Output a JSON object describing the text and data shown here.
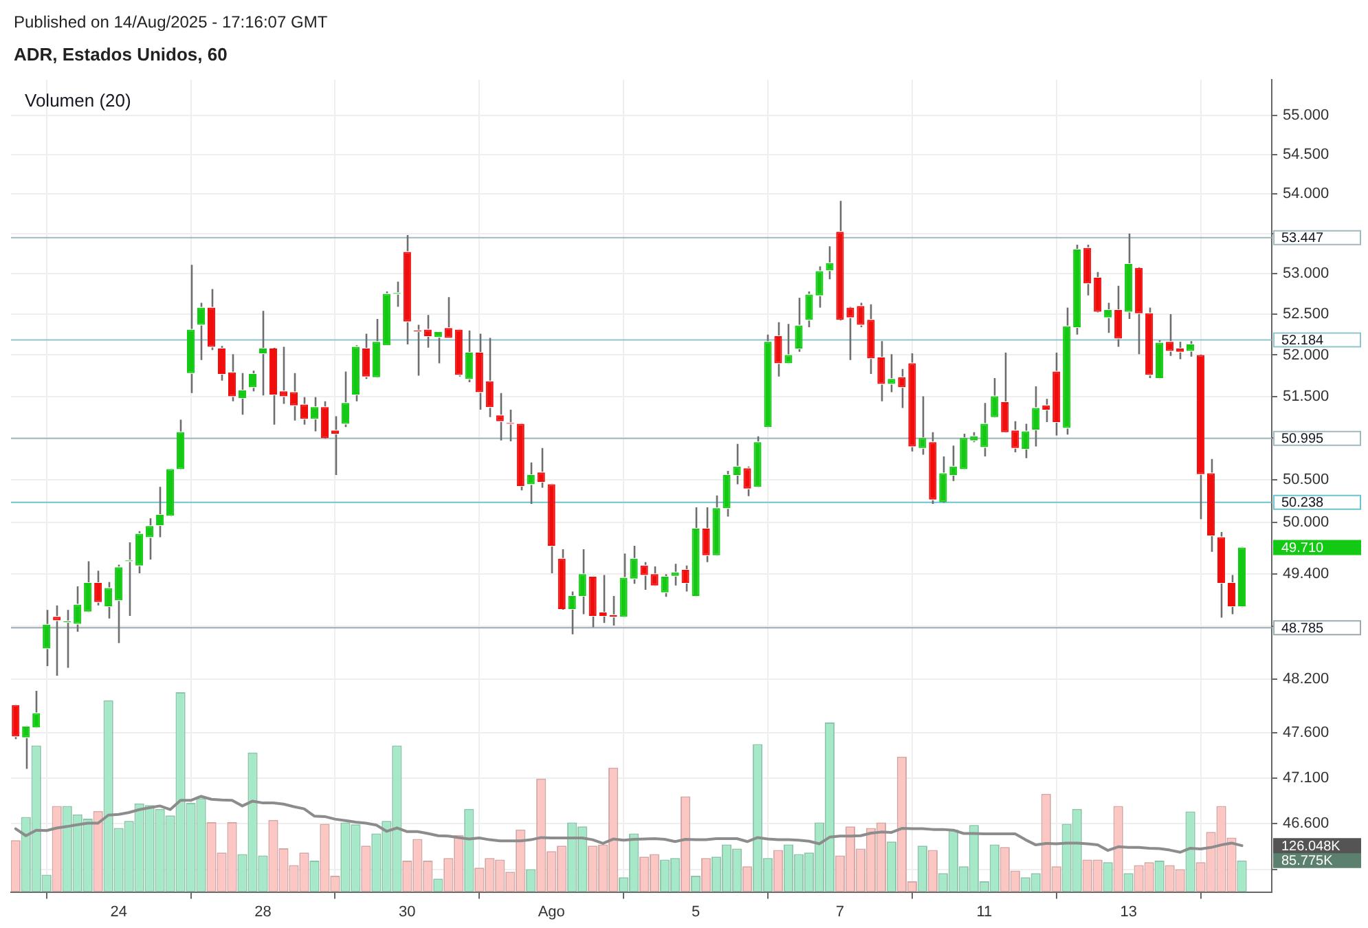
{
  "chart_data": {
    "type": "candlestick",
    "subtitle": "Published on 14/Aug/2025 - 17:16:07 GMT",
    "title": "ADR, Estados Unidos, 60",
    "annotations": [
      "Volumen (20)",
      "49.710"
    ],
    "categories": [
      null,
      null,
      null,
      null,
      null,
      null,
      null,
      null,
      null,
      null,
      "24",
      null,
      null,
      null,
      null,
      null,
      null,
      null,
      null,
      null,
      null,
      null,
      null,
      null,
      "28",
      null,
      null,
      null,
      null,
      null,
      null,
      null,
      null,
      null,
      null,
      null,
      null,
      null,
      "30",
      null,
      null,
      null,
      null,
      null,
      null,
      null,
      null,
      null,
      null,
      null,
      null,
      null,
      "Ago",
      null,
      null,
      null,
      null,
      null,
      null,
      null,
      null,
      null,
      null,
      null,
      null,
      null,
      "5",
      null,
      null,
      null,
      null,
      null,
      null,
      null,
      null,
      null,
      null,
      null,
      null,
      null,
      "7",
      null,
      null,
      null,
      null,
      null,
      null,
      null,
      null,
      null,
      null,
      null,
      null,
      null,
      "11",
      null,
      null,
      null,
      null,
      null,
      null,
      null,
      null,
      null,
      null,
      null,
      null,
      null,
      "13",
      null,
      null,
      null,
      null,
      null,
      null,
      null,
      null,
      null,
      null,
      null
    ],
    "ylim": [
      45.86,
      55.46
    ],
    "yticks": [
      {
        "value": 55,
        "label": "55.000"
      },
      {
        "value": 54.5,
        "label": "54.500"
      },
      {
        "value": 54,
        "label": "54.000"
      },
      {
        "value": 53.5,
        "label": null
      },
      {
        "value": 53,
        "label": "53.000"
      },
      {
        "value": 52.5,
        "label": "52.500"
      },
      {
        "value": 52,
        "label": "52.000"
      },
      {
        "value": 51.5,
        "label": "51.500"
      },
      {
        "value": 51,
        "label": null
      },
      {
        "value": 50.5,
        "label": "50.500"
      },
      {
        "value": 50,
        "label": "50.000"
      },
      {
        "value": 49.4,
        "label": "49.400"
      },
      {
        "value": 48.8,
        "label": null
      },
      {
        "value": 48.2,
        "label": "48.200"
      },
      {
        "value": 47.6,
        "label": "47.600"
      },
      {
        "value": 47.1,
        "label": "47.100"
      },
      {
        "value": 46.6,
        "label": "46.600"
      },
      {
        "value": 46.1,
        "label": null
      }
    ],
    "y2lim": [
      0,
      2208
    ],
    "y2ticks": [
      {
        "value": 85.775,
        "label": "85.775K"
      },
      {
        "value": 126.048,
        "label": "126.048K"
      }
    ],
    "log": "y",
    "grid": true,
    "ref_lines": [
      {
        "axis": "y",
        "value": 53.447,
        "label": "53.447",
        "color": "#9fb9be"
      },
      {
        "axis": "y",
        "value": 52.184,
        "label": "52.184",
        "color": "#8fc4cc"
      },
      {
        "axis": "y",
        "value": 50.995,
        "label": "50.995",
        "color": "#9fb9be"
      },
      {
        "axis": "y",
        "value": 50.238,
        "label": "50.238",
        "color": "#6cc3d1"
      },
      {
        "axis": "y",
        "value": 48.785,
        "label": "48.785",
        "color": "#9aacb0"
      }
    ],
    "series": [
      {
        "type": "bar",
        "axis": "y2",
        "values": [
          141,
          204,
          398,
          47,
          234,
          234,
          211,
          199,
          220,
          521,
          174,
          193,
          241,
          236,
          226,
          208,
          543,
          242,
          255,
          190,
          107,
          190,
          103,
          379,
          99,
          196,
          119,
          73,
          107,
          85,
          185,
          44,
          189,
          184,
          126,
          159,
          193,
          398,
          85,
          144,
          85,
          36,
          92,
          155,
          226,
          66,
          92,
          88,
          55,
          170,
          62,
          308,
          111,
          126,
          189,
          178,
          126,
          129,
          338,
          40,
          159,
          96,
          103,
          88,
          92,
          260,
          44,
          92,
          96,
          129,
          118,
          70,
          402,
          92,
          114,
          129,
          103,
          107,
          189,
          461,
          99,
          178,
          118,
          174,
          189,
          137,
          368,
          29,
          126,
          114,
          51,
          170,
          70,
          182,
          29,
          129,
          122,
          58,
          40,
          51,
          267,
          70,
          185,
          226,
          88,
          88,
          81,
          234,
          51,
          73,
          81,
          85,
          73,
          62,
          219,
          81,
          163,
          234,
          148,
          85.775
        ],
        "colors": [
          "#fcc6c3",
          "#a6e9c8",
          "#a6e9c8",
          "#a6e9c8",
          "#fcc6c3",
          "#a6e9c8",
          "#a6e9c8",
          "#a6e9c8",
          "#fcc6c3",
          "#a6e9c8",
          "#a6e9c8",
          "#a6e9c8",
          "#a6e9c8",
          "#a6e9c8",
          "#a6e9c8",
          "#a6e9c8",
          "#a6e9c8",
          "#a6e9c8",
          "#a6e9c8",
          "#fcc6c3",
          "#fcc6c3",
          "#fcc6c3",
          "#a6e9c8",
          "#a6e9c8",
          "#a6e9c8",
          "#fcc6c3",
          "#fcc6c3",
          "#fcc6c3",
          "#fcc6c3",
          "#a6e9c8",
          "#fcc6c3",
          "#fcc6c3",
          "#a6e9c8",
          "#a6e9c8",
          "#fcc6c3",
          "#a6e9c8",
          "#a6e9c8",
          "#a6e9c8",
          "#fcc6c3",
          "#fcc6c3",
          "#fcc6c3",
          "#a6e9c8",
          "#fcc6c3",
          "#fcc6c3",
          "#a6e9c8",
          "#fcc6c3",
          "#fcc6c3",
          "#fcc6c3",
          "#fcc6c3",
          "#fcc6c3",
          "#a6e9c8",
          "#fcc6c3",
          "#fcc6c3",
          "#fcc6c3",
          "#a6e9c8",
          "#a6e9c8",
          "#fcc6c3",
          "#fcc6c3",
          "#fcc6c3",
          "#a6e9c8",
          "#a6e9c8",
          "#fcc6c3",
          "#fcc6c3",
          "#a6e9c8",
          "#a6e9c8",
          "#fcc6c3",
          "#a6e9c8",
          "#fcc6c3",
          "#a6e9c8",
          "#a6e9c8",
          "#a6e9c8",
          "#fcc6c3",
          "#a6e9c8",
          "#a6e9c8",
          "#fcc6c3",
          "#a6e9c8",
          "#a6e9c8",
          "#a6e9c8",
          "#a6e9c8",
          "#a6e9c8",
          "#fcc6c3",
          "#fcc6c3",
          "#fcc6c3",
          "#fcc6c3",
          "#fcc6c3",
          "#a6e9c8",
          "#fcc6c3",
          "#fcc6c3",
          "#a6e9c8",
          "#fcc6c3",
          "#a6e9c8",
          "#a6e9c8",
          "#a6e9c8",
          "#a6e9c8",
          "#a6e9c8",
          "#a6e9c8",
          "#fcc6c3",
          "#fcc6c3",
          "#a6e9c8",
          "#a6e9c8",
          "#fcc6c3",
          "#fcc6c3",
          "#a6e9c8",
          "#a6e9c8",
          "#fcc6c3",
          "#fcc6c3",
          "#a6e9c8",
          "#fcc6c3",
          "#a6e9c8",
          "#fcc6c3",
          "#fcc6c3",
          "#a6e9c8",
          "#fcc6c3",
          "#fcc6c3",
          "#a6e9c8",
          "#fcc6c3",
          "#fcc6c3",
          "#fcc6c3",
          "#fcc6c3",
          "#a6e9c8"
        ]
      },
      {
        "type": "line",
        "axis": "y2",
        "color": "#8c8c8c",
        "values": [
          172,
          153,
          168,
          167,
          174,
          178,
          183,
          187,
          187,
          209,
          211,
          216,
          224,
          229,
          234,
          224,
          249,
          249,
          260,
          252,
          250,
          249,
          234,
          247,
          242,
          242,
          239,
          232,
          226,
          206,
          205,
          198,
          194,
          190,
          187,
          182,
          165,
          174,
          164,
          164,
          159,
          153,
          152,
          148,
          144,
          147,
          142,
          139,
          139,
          139,
          142,
          148,
          147,
          147,
          147,
          147,
          142,
          132,
          144,
          141,
          143,
          144,
          145,
          143,
          137,
          143,
          142,
          142,
          145,
          145,
          145,
          137,
          148,
          144,
          142,
          142,
          141,
          138,
          131,
          149,
          152,
          152,
          153,
          160,
          163,
          162,
          173,
          172,
          172,
          170,
          170,
          168,
          159,
          159,
          158,
          158,
          158,
          158,
          142,
          128,
          132,
          131,
          133,
          133,
          131,
          128,
          113,
          123,
          121,
          121,
          119,
          118,
          114,
          108,
          119,
          117,
          121,
          128,
          133,
          126.048
        ]
      },
      {
        "ohlc": [
          [
            47.91,
            47.92,
            47.53,
            47.56
          ],
          [
            47.55,
            47.68,
            47.2,
            47.67
          ],
          [
            47.66,
            48.07,
            47.65,
            47.82
          ],
          [
            48.55,
            48.99,
            48.35,
            48.82
          ],
          [
            48.91,
            49.04,
            48.24,
            48.87
          ],
          [
            48.85,
            48.99,
            48.33,
            48.86
          ],
          [
            48.83,
            49.26,
            48.74,
            49.05
          ],
          [
            48.97,
            49.55,
            48.96,
            49.3
          ],
          [
            49.3,
            49.44,
            49.04,
            49.08
          ],
          [
            49.03,
            49.31,
            48.89,
            49.24
          ],
          [
            49.1,
            49.51,
            48.61,
            49.48
          ],
          [
            49.55,
            49.77,
            48.92,
            49.56
          ],
          [
            49.5,
            49.9,
            49.41,
            49.87
          ],
          [
            49.83,
            50.05,
            49.57,
            49.96
          ],
          [
            49.97,
            50.42,
            49.83,
            50.09
          ],
          [
            50.08,
            50.64,
            50.07,
            50.63
          ],
          [
            50.63,
            51.22,
            50.62,
            51.07
          ],
          [
            51.78,
            53.11,
            51.54,
            52.31
          ],
          [
            52.37,
            52.64,
            51.94,
            52.58
          ],
          [
            52.58,
            52.81,
            52.06,
            52.1
          ],
          [
            52.08,
            52.11,
            51.69,
            51.77
          ],
          [
            51.79,
            52.01,
            51.44,
            51.5
          ],
          [
            51.48,
            51.78,
            51.28,
            51.57
          ],
          [
            51.61,
            51.81,
            51.56,
            51.77
          ],
          [
            52.02,
            52.54,
            51.51,
            52.08
          ],
          [
            52.08,
            52.08,
            51.16,
            51.52
          ],
          [
            51.56,
            52.1,
            51.41,
            51.5
          ],
          [
            51.55,
            51.78,
            51.21,
            51.39
          ],
          [
            51.4,
            51.49,
            51.16,
            51.23
          ],
          [
            51.23,
            51.49,
            51.08,
            51.37
          ],
          [
            51.37,
            51.44,
            51.0,
            51.0
          ],
          [
            51.09,
            51.26,
            50.56,
            51.05
          ],
          [
            51.17,
            51.8,
            51.13,
            51.42
          ],
          [
            51.52,
            52.12,
            51.44,
            52.1
          ],
          [
            52.08,
            52.26,
            51.71,
            51.74
          ],
          [
            51.73,
            52.44,
            51.72,
            52.16
          ],
          [
            52.12,
            52.78,
            52.11,
            52.75
          ],
          [
            52.75,
            52.9,
            52.59,
            52.76
          ],
          [
            53.27,
            53.48,
            52.13,
            52.41
          ],
          [
            52.3,
            52.37,
            51.75,
            52.29
          ],
          [
            52.31,
            52.49,
            52.09,
            52.23
          ],
          [
            52.22,
            52.29,
            51.9,
            52.28
          ],
          [
            52.33,
            52.71,
            52.2,
            52.21
          ],
          [
            52.31,
            52.32,
            51.74,
            51.76
          ],
          [
            51.71,
            52.3,
            51.67,
            52.03
          ],
          [
            52.03,
            52.26,
            51.34,
            51.55
          ],
          [
            51.68,
            52.21,
            51.25,
            51.37
          ],
          [
            51.27,
            51.54,
            50.97,
            51.2
          ],
          [
            51.18,
            51.34,
            50.96,
            51.17
          ],
          [
            51.17,
            51.18,
            50.38,
            50.43
          ],
          [
            50.45,
            50.71,
            50.22,
            50.56
          ],
          [
            50.59,
            50.88,
            50.41,
            50.48
          ],
          [
            50.45,
            50.46,
            49.41,
            49.73
          ],
          [
            49.58,
            49.69,
            49.0,
            49.0
          ],
          [
            49.0,
            49.2,
            48.71,
            49.15
          ],
          [
            49.15,
            49.69,
            48.94,
            49.4
          ],
          [
            49.37,
            49.38,
            48.79,
            48.92
          ],
          [
            48.96,
            49.39,
            48.84,
            48.92
          ],
          [
            48.93,
            49.15,
            48.81,
            48.91
          ],
          [
            48.91,
            49.64,
            48.9,
            49.36
          ],
          [
            49.35,
            49.73,
            49.29,
            49.58
          ],
          [
            49.5,
            49.54,
            49.22,
            49.39
          ],
          [
            49.4,
            49.49,
            49.26,
            49.27
          ],
          [
            49.19,
            49.4,
            49.14,
            49.37
          ],
          [
            49.38,
            49.52,
            49.27,
            49.42
          ],
          [
            49.45,
            49.5,
            49.2,
            49.3
          ],
          [
            49.15,
            50.18,
            49.14,
            49.93
          ],
          [
            49.93,
            50.18,
            49.54,
            49.62
          ],
          [
            49.62,
            50.32,
            49.61,
            50.17
          ],
          [
            50.17,
            50.61,
            50.07,
            50.56
          ],
          [
            50.56,
            50.93,
            50.45,
            50.66
          ],
          [
            50.64,
            50.66,
            50.31,
            50.4
          ],
          [
            50.42,
            51.02,
            50.41,
            50.95
          ],
          [
            51.13,
            52.25,
            51.12,
            52.16
          ],
          [
            52.23,
            52.4,
            51.74,
            51.9
          ],
          [
            51.9,
            52.38,
            51.89,
            52.0
          ],
          [
            52.08,
            52.7,
            52.04,
            52.36
          ],
          [
            52.43,
            52.78,
            52.34,
            52.74
          ],
          [
            52.73,
            53.09,
            52.58,
            53.03
          ],
          [
            53.04,
            53.34,
            52.93,
            53.13
          ],
          [
            53.52,
            53.91,
            52.43,
            52.43
          ],
          [
            52.58,
            52.58,
            51.94,
            52.46
          ],
          [
            52.6,
            52.64,
            52.34,
            52.37
          ],
          [
            52.43,
            52.62,
            51.77,
            51.96
          ],
          [
            51.97,
            52.17,
            51.44,
            51.65
          ],
          [
            51.65,
            52.01,
            51.55,
            51.71
          ],
          [
            51.73,
            51.83,
            51.36,
            51.61
          ],
          [
            51.9,
            52.02,
            50.84,
            50.9
          ],
          [
            50.88,
            51.5,
            50.8,
            51.0
          ],
          [
            50.95,
            51.07,
            50.22,
            50.27
          ],
          [
            50.24,
            50.78,
            50.24,
            50.58
          ],
          [
            50.56,
            50.91,
            50.49,
            50.66
          ],
          [
            50.63,
            51.05,
            50.62,
            51.0
          ],
          [
            50.97,
            51.07,
            50.95,
            51.02
          ],
          [
            50.89,
            51.42,
            50.78,
            51.17
          ],
          [
            51.25,
            51.72,
            51.24,
            51.5
          ],
          [
            51.43,
            52.03,
            51.06,
            51.07
          ],
          [
            51.09,
            51.2,
            50.83,
            50.88
          ],
          [
            50.87,
            51.17,
            50.76,
            51.08
          ],
          [
            51.1,
            51.62,
            50.9,
            51.36
          ],
          [
            51.39,
            51.47,
            51.19,
            51.34
          ],
          [
            51.8,
            52.03,
            51.03,
            51.19
          ],
          [
            51.12,
            52.58,
            51.04,
            52.35
          ],
          [
            52.34,
            53.36,
            52.25,
            53.3
          ],
          [
            53.32,
            53.36,
            52.73,
            52.88
          ],
          [
            52.95,
            53.02,
            52.53,
            52.53
          ],
          [
            52.46,
            52.64,
            52.27,
            52.55
          ],
          [
            52.55,
            52.85,
            52.1,
            52.2
          ],
          [
            52.53,
            53.5,
            52.44,
            53.12
          ],
          [
            53.07,
            53.07,
            52.01,
            52.51
          ],
          [
            52.51,
            52.58,
            51.72,
            51.76
          ],
          [
            51.72,
            52.18,
            51.71,
            52.15
          ],
          [
            52.16,
            52.5,
            51.99,
            52.05
          ],
          [
            52.08,
            52.16,
            51.95,
            52.04
          ],
          [
            52.05,
            52.17,
            51.98,
            52.13
          ],
          [
            52.0,
            52.0,
            50.04,
            50.57
          ],
          [
            50.58,
            50.75,
            49.66,
            49.85
          ],
          [
            49.83,
            49.89,
            48.9,
            49.3
          ],
          [
            49.3,
            49.39,
            48.94,
            49.03
          ],
          [
            49.03,
            49.72,
            49.02,
            49.71
          ]
        ],
        "colors": [
          "#f20d0d",
          "#13c913",
          "#13c913",
          "#13c913",
          "#f20d0d",
          "#13c913",
          "#13c913",
          "#13c913",
          "#f20d0d",
          "#13c913",
          "#13c913",
          "#13c913",
          "#13c913",
          "#13c913",
          "#13c913",
          "#13c913",
          "#13c913",
          "#13c913",
          "#13c913",
          "#f20d0d",
          "#f20d0d",
          "#f20d0d",
          "#13c913",
          "#13c913",
          "#13c913",
          "#f20d0d",
          "#f20d0d",
          "#f20d0d",
          "#f20d0d",
          "#13c913",
          "#f20d0d",
          "#f20d0d",
          "#13c913",
          "#13c913",
          "#f20d0d",
          "#13c913",
          "#13c913",
          "#13c913",
          "#f20d0d",
          "#f20d0d",
          "#f20d0d",
          "#13c913",
          "#f20d0d",
          "#f20d0d",
          "#13c913",
          "#f20d0d",
          "#f20d0d",
          "#f20d0d",
          "#f20d0d",
          "#f20d0d",
          "#13c913",
          "#f20d0d",
          "#f20d0d",
          "#f20d0d",
          "#13c913",
          "#13c913",
          "#f20d0d",
          "#f20d0d",
          "#f20d0d",
          "#13c913",
          "#13c913",
          "#f20d0d",
          "#f20d0d",
          "#13c913",
          "#13c913",
          "#f20d0d",
          "#13c913",
          "#f20d0d",
          "#13c913",
          "#13c913",
          "#13c913",
          "#f20d0d",
          "#13c913",
          "#13c913",
          "#f20d0d",
          "#13c913",
          "#13c913",
          "#13c913",
          "#13c913",
          "#13c913",
          "#f20d0d",
          "#f20d0d",
          "#f20d0d",
          "#f20d0d",
          "#f20d0d",
          "#13c913",
          "#f20d0d",
          "#f20d0d",
          "#13c913",
          "#f20d0d",
          "#13c913",
          "#13c913",
          "#13c913",
          "#13c913",
          "#13c913",
          "#13c913",
          "#f20d0d",
          "#f20d0d",
          "#13c913",
          "#13c913",
          "#f20d0d",
          "#f20d0d",
          "#13c913",
          "#13c913",
          "#f20d0d",
          "#f20d0d",
          "#13c913",
          "#f20d0d",
          "#13c913",
          "#f20d0d",
          "#f20d0d",
          "#13c913",
          "#f20d0d",
          "#f20d0d",
          "#13c913",
          "#f20d0d",
          "#f20d0d",
          "#f20d0d",
          "#f20d0d",
          "#13c913"
        ]
      }
    ]
  }
}
